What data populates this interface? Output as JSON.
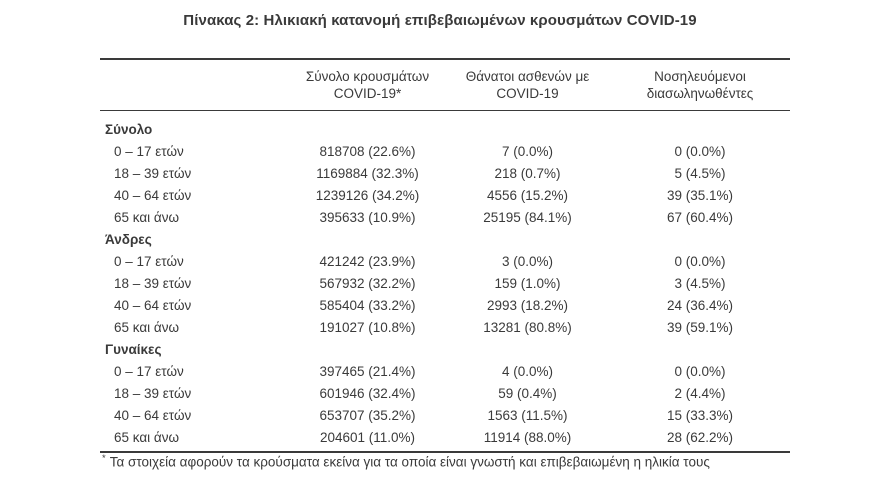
{
  "title": "Πίνακας 2: Ηλικιακή κατανομή επιβεβαιωμένων κρουσμάτων COVID-19",
  "table": {
    "columns": {
      "cases_line1": "Σύνολο κρουσμάτων",
      "cases_line2": "COVID-19*",
      "deaths_line1": "Θάνατοι ασθενών με",
      "deaths_line2": "COVID-19",
      "intubated_line1": "Νοσηλευόμενοι",
      "intubated_line2": "διασωληνωθέντες"
    },
    "sections": [
      {
        "header": "Σύνολο",
        "rows": [
          {
            "label": "0 – 17 ετών",
            "cases": "818708 (22.6%)",
            "deaths": "7 (0.0%)",
            "intubated": "0 (0.0%)"
          },
          {
            "label": "18 – 39 ετών",
            "cases": "1169884 (32.3%)",
            "deaths": "218 (0.7%)",
            "intubated": "5 (4.5%)"
          },
          {
            "label": "40 – 64 ετών",
            "cases": "1239126 (34.2%)",
            "deaths": "4556 (15.2%)",
            "intubated": "39 (35.1%)"
          },
          {
            "label": "65 και άνω",
            "cases": "395633 (10.9%)",
            "deaths": "25195 (84.1%)",
            "intubated": "67 (60.4%)"
          }
        ]
      },
      {
        "header": "Άνδρες",
        "rows": [
          {
            "label": "0 – 17 ετών",
            "cases": "421242 (23.9%)",
            "deaths": "3 (0.0%)",
            "intubated": "0 (0.0%)"
          },
          {
            "label": "18 – 39 ετών",
            "cases": "567932 (32.2%)",
            "deaths": "159 (1.0%)",
            "intubated": "3 (4.5%)"
          },
          {
            "label": "40 – 64 ετών",
            "cases": "585404 (33.2%)",
            "deaths": "2993 (18.2%)",
            "intubated": "24 (36.4%)"
          },
          {
            "label": "65 και άνω",
            "cases": "191027 (10.8%)",
            "deaths": "13281 (80.8%)",
            "intubated": "39 (59.1%)"
          }
        ]
      },
      {
        "header": "Γυναίκες",
        "rows": [
          {
            "label": "0 – 17 ετών",
            "cases": "397465 (21.4%)",
            "deaths": "4 (0.0%)",
            "intubated": "0 (0.0%)"
          },
          {
            "label": "18 – 39 ετών",
            "cases": "601946 (32.4%)",
            "deaths": "59 (0.4%)",
            "intubated": "2 (4.4%)"
          },
          {
            "label": "40 – 64 ετών",
            "cases": "653707 (35.2%)",
            "deaths": "1563 (11.5%)",
            "intubated": "15 (33.3%)"
          },
          {
            "label": "65 και άνω",
            "cases": "204601 (11.0%)",
            "deaths": "11914 (88.0%)",
            "intubated": "28 (62.2%)"
          }
        ]
      }
    ]
  },
  "footnote": {
    "marker": "*",
    "text": "Τα στοιχεία αφορούν τα κρούσματα εκείνα για τα οποία είναι γνωστή και επιβεβαιωμένη η ηλικία τους"
  },
  "colors": {
    "text": "#3a3a3a",
    "rule": "#3a3a3a",
    "background": "#ffffff"
  }
}
